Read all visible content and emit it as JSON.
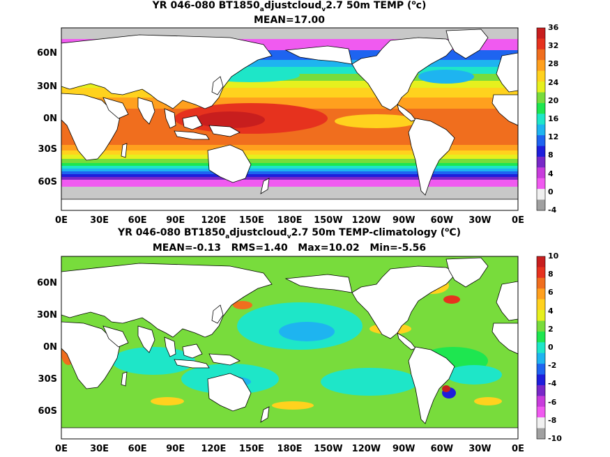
{
  "panels": [
    {
      "title_pre": "YR 046-080 BT1850",
      "title_sub1": "a",
      "title_mid": "djustcloud",
      "title_sub2": "v",
      "title_post": "2.7 50m TEMP (",
      "title_sup": "o",
      "title_end": "c)",
      "stats": "MEAN=17.00",
      "colorbar_labels": [
        "36",
        "32",
        "28",
        "24",
        "20",
        "16",
        "12",
        "8",
        "4",
        "0",
        "-4"
      ],
      "colorbar_colors": [
        "#c81e1e",
        "#e6321e",
        "#f06e1e",
        "#ffa01e",
        "#ffd21e",
        "#e6f01e",
        "#78dc3c",
        "#1ee650",
        "#1ee6c8",
        "#1eb4f0",
        "#1e64f0",
        "#1e1edc",
        "#7828c8",
        "#c83cdc",
        "#f05af0",
        "#f0f0f0",
        "#a0a0a0"
      ]
    },
    {
      "title_pre": "YR 046-080 BT1850",
      "title_sub1": "a",
      "title_mid": "djustcloud",
      "title_sub2": "v",
      "title_post": "2.7 50m TEMP-climatology (",
      "title_sup": "o",
      "title_end": "C)",
      "stats": "MEAN=-0.13   RMS=1.40   Max=10.02   Min=-5.56",
      "colorbar_labels": [
        "10",
        "8",
        "6",
        "4",
        "2",
        "0",
        "-2",
        "-4",
        "-6",
        "-8",
        "-10"
      ],
      "colorbar_colors": [
        "#c81e1e",
        "#e6321e",
        "#f06e1e",
        "#ffa01e",
        "#ffd21e",
        "#e6f01e",
        "#78dc3c",
        "#1ee650",
        "#1ee6c8",
        "#1eb4f0",
        "#1e64f0",
        "#1e1edc",
        "#7828c8",
        "#c83cdc",
        "#f05af0",
        "#f0f0f0",
        "#a0a0a0"
      ]
    }
  ],
  "lat_labels": [
    "60N",
    "30N",
    "0N",
    "30S",
    "60S"
  ],
  "lon_labels": [
    "0E",
    "30E",
    "60E",
    "90E",
    "120E",
    "150E",
    "180E",
    "150W",
    "120W",
    "90W",
    "60W",
    "30W",
    "0E"
  ]
}
